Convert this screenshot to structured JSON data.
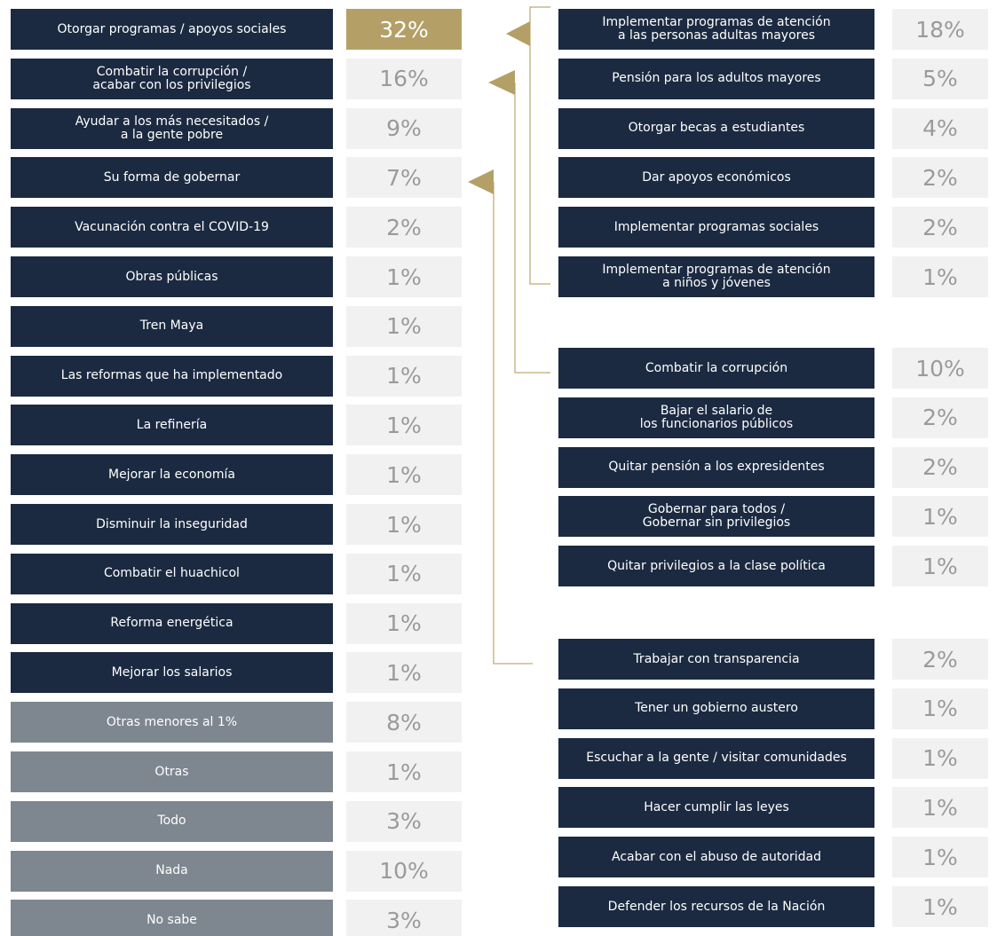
{
  "left": [
    {
      "label": "Otorgar programas / apoyos sociales",
      "value": "32%"
    },
    {
      "label": "Combatir la corrupción /\nacabar con los privilegios",
      "value": "16%"
    },
    {
      "label": "Ayudar a los más necesitados /\na la gente pobre",
      "value": "9%"
    },
    {
      "label": "Su forma de gobernar",
      "value": "7%"
    },
    {
      "label": "Vacunación contra el COVID-19",
      "value": "2%"
    },
    {
      "label": "Obras públicas",
      "value": "1%"
    },
    {
      "label": "Tren Maya",
      "value": "1%"
    },
    {
      "label": "Las reformas que ha implementado",
      "value": "1%"
    },
    {
      "label": "La refinería",
      "value": "1%"
    },
    {
      "label": "Mejorar la economía",
      "value": "1%"
    },
    {
      "label": "Disminuir la inseguridad",
      "value": "1%"
    },
    {
      "label": "Combatir el huachicol",
      "value": "1%"
    },
    {
      "label": "Reforma energética",
      "value": "1%"
    },
    {
      "label": "Mejorar los salarios",
      "value": "1%"
    },
    {
      "label": "Otras menores al 1%",
      "value": "8%"
    },
    {
      "label": "Otras",
      "value": "1%"
    },
    {
      "label": "Todo",
      "value": "3%"
    },
    {
      "label": "Nada",
      "value": "10%"
    },
    {
      "label": "No sabe",
      "value": "3%"
    }
  ],
  "right": [
    [
      {
        "label": "Implementar programas de atención\na las personas adultas mayores",
        "value": "18%"
      },
      {
        "label": "Pensión para los adultos mayores",
        "value": "5%"
      },
      {
        "label": "Otorgar becas a estudiantes",
        "value": "4%"
      },
      {
        "label": "Dar apoyos económicos",
        "value": "2%"
      },
      {
        "label": "Implementar programas sociales",
        "value": "2%"
      },
      {
        "label": "Implementar programas de atención\na niños y jóvenes",
        "value": "1%"
      }
    ],
    [
      {
        "label": "Combatir la corrupción",
        "value": "10%"
      },
      {
        "label": "Bajar el salario de\nlos funcionarios públicos",
        "value": "2%"
      },
      {
        "label": "Quitar pensión a los expresidentes",
        "value": "2%"
      },
      {
        "label": "Gobernar para todos /\nGobernar sin privilegios",
        "value": "1%"
      },
      {
        "label": "Quitar privilegios a la clase política",
        "value": "1%"
      }
    ],
    [
      {
        "label": "Trabajar con transparencia",
        "value": "2%"
      },
      {
        "label": "Tener un gobierno austero",
        "value": "1%"
      },
      {
        "label": "Escuchar a la gente / visitar comunidades",
        "value": "1%"
      },
      {
        "label": "Hacer cumplir las leyes",
        "value": "1%"
      },
      {
        "label": "Acabar con el abuso de autoridad",
        "value": "1%"
      },
      {
        "label": "Defender los recursos de la Nación",
        "value": "1%"
      }
    ]
  ]
}
